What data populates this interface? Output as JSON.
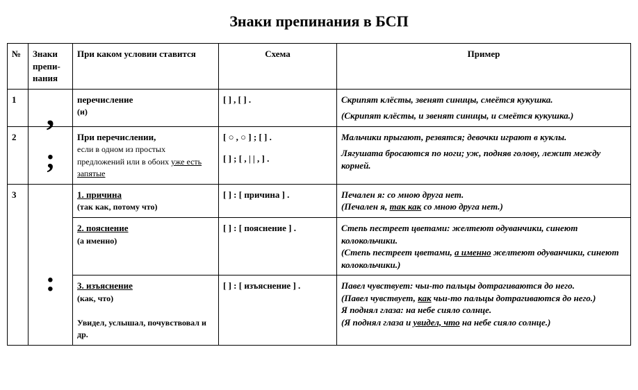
{
  "title": "Знаки препинания в БСП",
  "headers": {
    "num": "№",
    "sign": "Знаки препи-нания",
    "cond": "При каком условии ставится",
    "scheme": "Схема",
    "example": "Пример"
  },
  "rows": {
    "r1": {
      "num": "1",
      "sign": ",",
      "cond_main": "перечисление",
      "cond_note": "(и)",
      "scheme": "[ ] , [ ] .",
      "ex1": "Скрипят клёсты, звенят синицы, смеётся кукушка.",
      "ex2": "(Скрипят клёсты, и звенят синицы, и смеётся кукушка.)"
    },
    "r2": {
      "num": "2",
      "sign": ";",
      "cond_main": "При перечислении,",
      "cond_body1": "если в одном из простых предложений или в обоих ",
      "cond_body2": "уже есть запятые",
      "scheme1": "[ ○ , ○ ] ; [     ] .",
      "scheme2": "[  ] ; [ , |   | , ] .",
      "ex1": "Мальчики прыгают, резвятся; девочки играют в куклы.",
      "ex2": "Лягушата бросаются по ноги; уж, подняв голову, лежит между корней."
    },
    "r3": {
      "num": "3",
      "sign": ":",
      "a": {
        "cond_main": "1. причина",
        "cond_note": "(так как, потому что)",
        "scheme": "[  ] : [ причина ] .",
        "ex1": "Печален я: со мною друга нет.",
        "ex2a": "(Печален я, ",
        "ex2b": "так как",
        "ex2c": " со мною друга нет.)"
      },
      "b": {
        "cond_main": "2. пояснение",
        "cond_note": "(а именно)",
        "scheme": "[  ] : [ пояснение ] .",
        "ex1": "Степь пестреет цветами: желтеют одуванчики, синеют колокольчики.",
        "ex2a": "(Степь пестреет цветами, ",
        "ex2b": "а именно",
        "ex2c": " желтеют одуванчики, синеют колокольчики.)"
      },
      "c": {
        "cond_main": "3. изъяснение",
        "cond_note": "(как, что)",
        "cond_extra": "Увидел, услышал, почувствовал и др.",
        "scheme": "[  ] : [ изъяснение ] .",
        "ex1": "Павел чувствует: чьи-то пальцы дотрагиваются до него.",
        "ex2a": "(Павел чувствует, ",
        "ex2b": "как",
        "ex2c": " чьи-то пальцы дотрагиваются до него.)",
        "ex3": "Я поднял глаза: на небе сияло солнце.",
        "ex4a": "(Я поднял глаза и ",
        "ex4b": "увидел, что",
        "ex4c": " на небе сияло солнце.)"
      }
    }
  }
}
